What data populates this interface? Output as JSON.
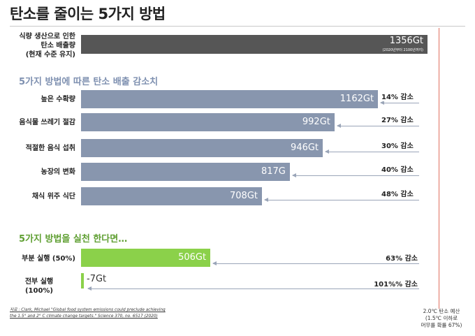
{
  "title": "탄소를 줄이는 5가지 방법",
  "colors": {
    "baseline": "#565656",
    "method": "#8896ae",
    "practice": "#8bd14a",
    "section_blue": "#7e90b0",
    "section_green": "#5f9f32",
    "budget_line": "#e07060"
  },
  "baseline": {
    "label_lines": [
      "식량 생산으로 인한",
      "탄소 배출량",
      "(현재 수준 유지)"
    ],
    "value_label": "1356Gt",
    "value_note": "(2020년부터 2100년까지)"
  },
  "section_methods": "5가지 방법에 따른 탄소 배출 감소치",
  "section_practice": "5가지 방법을 실천 한다면…",
  "budget_lines": [
    "2.0℃ 탄소 예산",
    "(1.5℃ 이하로",
    "머무를 확률 67%)"
  ],
  "source_lines": [
    "저료 : Clark, Michael \"Global food system emissions could preclude achieving",
    "the 1.5° and 2° C climate change targets.\" Science 370, no. 6517 (2020)"
  ],
  "chart_data": {
    "type": "bar",
    "orientation": "horizontal",
    "baseline": {
      "label": "식량 생산으로 인한 탄소 배출량 (현재 수준 유지)",
      "value": 1356
    },
    "methods": [
      {
        "label": "높은 수확량",
        "value": 1162,
        "value_label": "1162Gt",
        "reduction": "14% 감소"
      },
      {
        "label": "음식물 쓰레기 절감",
        "value": 992,
        "value_label": "992Gt",
        "reduction": "27% 감소"
      },
      {
        "label": "적절한 음식 섭취",
        "value": 946,
        "value_label": "946Gt",
        "reduction": "30% 감소"
      },
      {
        "label": "농장의 변화",
        "value": 817,
        "value_label": "817G",
        "reduction": "40% 감소"
      },
      {
        "label": "채식 위주 식단",
        "value": 708,
        "value_label": "708Gt",
        "reduction": "48% 감소"
      }
    ],
    "practice": [
      {
        "label": "부분 실행 (50%)",
        "value": 506,
        "value_label": "506Gt",
        "reduction": "63% 감소"
      },
      {
        "label_lines": [
          "전부 실행",
          "(100%)"
        ],
        "value": -7,
        "value_label": "-7Gt",
        "reduction": "101%% 감소"
      }
    ]
  }
}
